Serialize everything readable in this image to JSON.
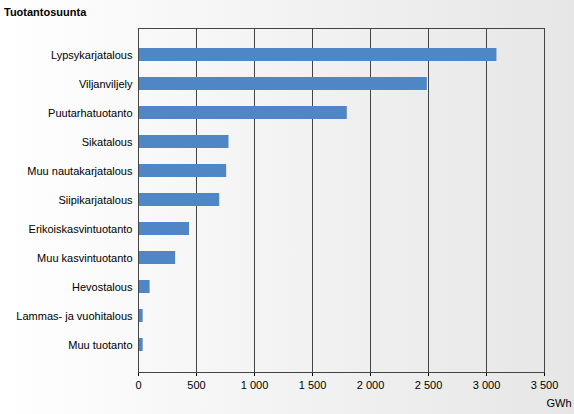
{
  "chart_data": {
    "type": "bar",
    "orientation": "horizontal",
    "y_label": "Tuotantosuunta",
    "x_label": "GWh",
    "categories": [
      "Lypsykarjatalous",
      "Viljanviljely",
      "Puutarhatuotanto",
      "Sikatalous",
      "Muu nautakarjatalous",
      "Siipikarjatalous",
      "Erikoiskasvintuotanto",
      "Muu kasvintuotanto",
      "Hevostalous",
      "Lammas- ja vuohitalous",
      "Muu tuotanto"
    ],
    "values": [
      3090,
      2490,
      1800,
      780,
      760,
      700,
      440,
      320,
      100,
      40,
      40
    ],
    "color": "#4f86c6",
    "xlim": [
      0,
      3500
    ],
    "xticks": [
      0,
      500,
      {
        "value": 1000,
        "label": "1 000"
      },
      {
        "value": 1500,
        "label": "1 500"
      },
      {
        "value": 2000,
        "label": "2 000"
      },
      {
        "value": 2500,
        "label": "2 500"
      },
      {
        "value": 3000,
        "label": "3 000"
      },
      {
        "value": 3500,
        "label": "3 500"
      }
    ],
    "grid": true
  }
}
